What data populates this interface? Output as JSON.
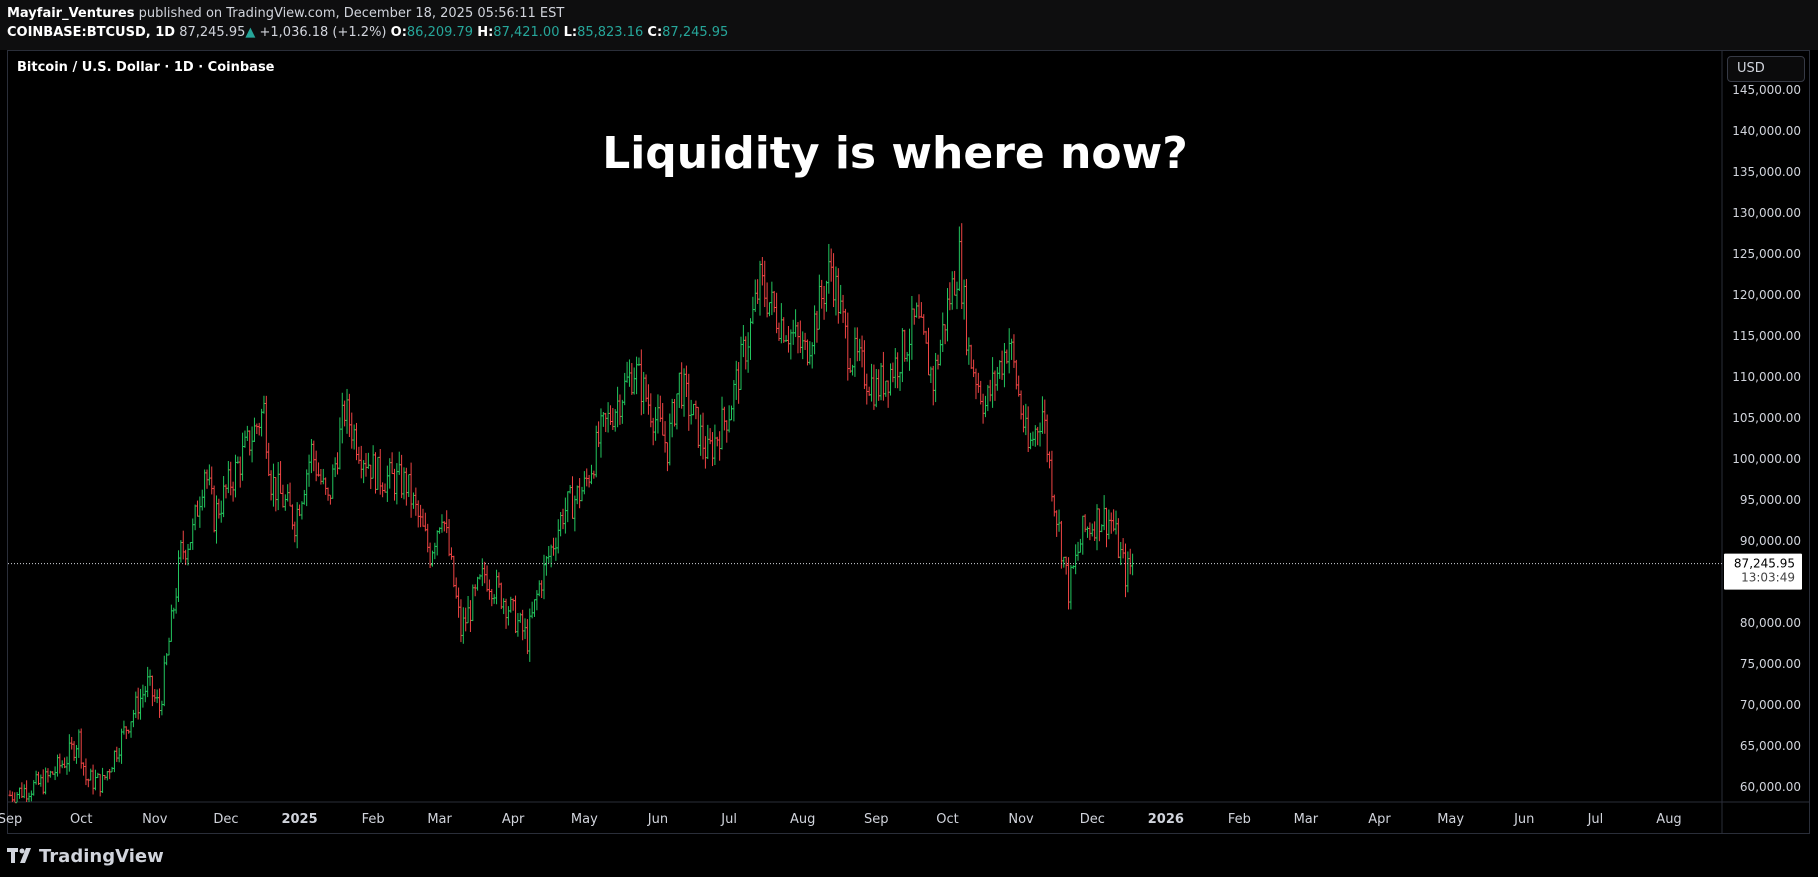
{
  "header": {
    "author": "Mayfair_Ventures",
    "published_text": "published on TradingView.com, December 18, 2025 05:56:11 EST",
    "symbol": "COINBASE:BTCUSD, 1D",
    "last": "87,245.95",
    "change_arrow": "▲",
    "change": "+1,036.18 (+1.2%)",
    "o_label": "O:",
    "o_value": "86,209.79",
    "h_label": "H:",
    "h_value": "87,421.00",
    "l_label": "L:",
    "l_value": "85,823.16",
    "c_label": "C:",
    "c_value": "87,245.95"
  },
  "symbol_label": "Bitcoin / U.S. Dollar · 1D · Coinbase",
  "currency_button": "USD",
  "price_tag": {
    "price": "87,245.95",
    "countdown": "13:03:49"
  },
  "footer": {
    "brand": "TradingView"
  },
  "colors": {
    "up": "#26a69a",
    "candle_up": "#22c55e",
    "candle_down": "#ef4444",
    "background": "#000000"
  },
  "chart_data": {
    "type": "ohlc",
    "title": "Liquidity is where now?",
    "y_ticks": [
      "60,000.00",
      "65,000.00",
      "70,000.00",
      "75,000.00",
      "80,000.00",
      "90,000.00",
      "95,000.00",
      "100,000.00",
      "105,000.00",
      "110,000.00",
      "115,000.00",
      "120,000.00",
      "125,000.00",
      "130,000.00",
      "135,000.00",
      "140,000.00",
      "145,000.00"
    ],
    "ylim": [
      59000,
      145500
    ],
    "x_ticks": [
      "Sep",
      "Oct",
      "Nov",
      "Dec",
      "2025",
      "Feb",
      "Mar",
      "Apr",
      "May",
      "Jun",
      "Jul",
      "Aug",
      "Sep",
      "Oct",
      "Nov",
      "Dec",
      "2026",
      "Feb",
      "Mar",
      "Apr",
      "May",
      "Jun",
      "Jul",
      "Aug"
    ],
    "x_tick_dates": [
      "2024-09-01",
      "2024-10-01",
      "2024-11-01",
      "2024-12-01",
      "2025-01-01",
      "2025-02-01",
      "2025-03-01",
      "2025-04-01",
      "2025-05-01",
      "2025-06-01",
      "2025-07-01",
      "2025-08-01",
      "2025-09-01",
      "2025-10-01",
      "2025-11-01",
      "2025-12-01",
      "2026-01-01",
      "2026-02-01",
      "2026-03-01",
      "2026-04-01",
      "2026-05-01",
      "2026-06-01",
      "2026-07-01",
      "2026-08-01"
    ],
    "last_price": 87245.95,
    "series": [
      {
        "date": "2024-09-01",
        "close": 59000
      },
      {
        "date": "2024-09-15",
        "close": 60500
      },
      {
        "date": "2024-09-25",
        "close": 63500
      },
      {
        "date": "2024-09-30",
        "close": 66000
      },
      {
        "date": "2024-10-03",
        "close": 61000
      },
      {
        "date": "2024-10-10",
        "close": 60500
      },
      {
        "date": "2024-10-15",
        "close": 64000
      },
      {
        "date": "2024-10-21",
        "close": 68000
      },
      {
        "date": "2024-10-29",
        "close": 72500
      },
      {
        "date": "2024-11-03",
        "close": 69500
      },
      {
        "date": "2024-11-06",
        "close": 75500
      },
      {
        "date": "2024-11-12",
        "close": 88500
      },
      {
        "date": "2024-11-17",
        "close": 91000
      },
      {
        "date": "2024-11-22",
        "close": 99000
      },
      {
        "date": "2024-11-26",
        "close": 93000
      },
      {
        "date": "2024-12-05",
        "close": 98500
      },
      {
        "date": "2024-12-17",
        "close": 106000
      },
      {
        "date": "2024-12-20",
        "close": 97500
      },
      {
        "date": "2024-12-30",
        "close": 92500
      },
      {
        "date": "2025-01-06",
        "close": 101000
      },
      {
        "date": "2025-01-13",
        "close": 94500
      },
      {
        "date": "2025-01-20",
        "close": 106000
      },
      {
        "date": "2025-01-27",
        "close": 101000
      },
      {
        "date": "2025-02-03",
        "close": 98000
      },
      {
        "date": "2025-02-15",
        "close": 97000
      },
      {
        "date": "2025-02-25",
        "close": 88500
      },
      {
        "date": "2025-03-02",
        "close": 94000
      },
      {
        "date": "2025-03-10",
        "close": 79000
      },
      {
        "date": "2025-03-20",
        "close": 86000
      },
      {
        "date": "2025-03-28",
        "close": 83000
      },
      {
        "date": "2025-04-07",
        "close": 78000
      },
      {
        "date": "2025-04-12",
        "close": 84500
      },
      {
        "date": "2025-04-22",
        "close": 93500
      },
      {
        "date": "2025-05-01",
        "close": 96500
      },
      {
        "date": "2025-05-08",
        "close": 103000
      },
      {
        "date": "2025-05-22",
        "close": 111000
      },
      {
        "date": "2025-06-05",
        "close": 101500
      },
      {
        "date": "2025-06-10",
        "close": 109500
      },
      {
        "date": "2025-06-22",
        "close": 100500
      },
      {
        "date": "2025-07-01",
        "close": 106000
      },
      {
        "date": "2025-07-10",
        "close": 116000
      },
      {
        "date": "2025-07-14",
        "close": 121500
      },
      {
        "date": "2025-07-20",
        "close": 118000
      },
      {
        "date": "2025-08-02",
        "close": 113000
      },
      {
        "date": "2025-08-13",
        "close": 123500
      },
      {
        "date": "2025-08-20",
        "close": 113500
      },
      {
        "date": "2025-09-01",
        "close": 108500
      },
      {
        "date": "2025-09-10",
        "close": 112000
      },
      {
        "date": "2025-09-18",
        "close": 117000
      },
      {
        "date": "2025-09-25",
        "close": 109500
      },
      {
        "date": "2025-10-01",
        "close": 118500
      },
      {
        "date": "2025-10-06",
        "close": 124500
      },
      {
        "date": "2025-10-10",
        "close": 113000
      },
      {
        "date": "2025-10-17",
        "close": 106500
      },
      {
        "date": "2025-10-27",
        "close": 114500
      },
      {
        "date": "2025-11-04",
        "close": 101000
      },
      {
        "date": "2025-11-10",
        "close": 106000
      },
      {
        "date": "2025-11-15",
        "close": 95000
      },
      {
        "date": "2025-11-21",
        "close": 84000
      },
      {
        "date": "2025-11-27",
        "close": 91000
      },
      {
        "date": "2025-12-04",
        "close": 93000
      },
      {
        "date": "2025-12-09",
        "close": 92500
      },
      {
        "date": "2025-12-15",
        "close": 86000
      },
      {
        "date": "2025-12-18",
        "close": 87245.95
      }
    ]
  }
}
